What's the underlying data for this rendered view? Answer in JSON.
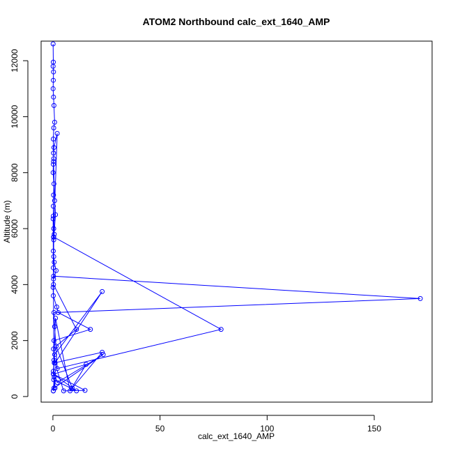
{
  "chart_data": {
    "type": "line",
    "title": "ATOM2 Northbound calc_ext_1640_AMP",
    "xlabel": "calc_ext_1640_AMP",
    "ylabel": "Altitude (m)",
    "xlim": [
      -5.5,
      177
    ],
    "ylim": [
      -200,
      12700
    ],
    "x_ticks": [
      0,
      50,
      100,
      150
    ],
    "y_ticks": [
      0,
      2000,
      4000,
      6000,
      8000,
      10000,
      12000
    ],
    "grid": false,
    "legend": "none",
    "color": "#0000ff",
    "marker": "open-circle",
    "series": [
      {
        "x": [
          0.1,
          0.2,
          0.1,
          0.3,
          0.2,
          0.1,
          0.3,
          0.5,
          0.8,
          0.4,
          0.2,
          0.3,
          0.4,
          0.2,
          0.1,
          0.5,
          0.3,
          0.2,
          0.2,
          0.4,
          0.6,
          0.3,
          2.0,
          0.5,
          0.3,
          0.8,
          1.2,
          0.4,
          0.2,
          0.6,
          1.5,
          0.3,
          0.1,
          0.2,
          1.8,
          2.5,
          17.5,
          0.5,
          0.3,
          1.0,
          23.0,
          0.8,
          0.2,
          2.0,
          23.5,
          0.5,
          0.1,
          0.4,
          0.2,
          0.3,
          171.5,
          0.5,
          0.8,
          2.0,
          78.5,
          0.4,
          0.3,
          11.0,
          1.5,
          9.0,
          23.0,
          0.6,
          0.2,
          15.5,
          8.0,
          1.2,
          0.5,
          5.0,
          15.0,
          0.3,
          11.0,
          0.4,
          1.0,
          0.6,
          0.2,
          0.2
        ],
        "y": [
          12600,
          11950,
          11800,
          11600,
          11300,
          11000,
          10700,
          10400,
          9800,
          9600,
          9200,
          8700,
          8500,
          8300,
          8000,
          7600,
          7200,
          6800,
          6450,
          6000,
          5800,
          5700,
          9400,
          8900,
          8400,
          7000,
          6500,
          5600,
          5200,
          4800,
          4500,
          4200,
          3900,
          3600,
          3200,
          3000,
          2400,
          2000,
          1700,
          1200,
          3750,
          1500,
          900,
          500,
          1500,
          300,
          6350,
          5000,
          4600,
          4300,
          3500,
          3000,
          2500,
          1000,
          2400,
          5700,
          4000,
          2400,
          1800,
          300,
          1580,
          1200,
          800,
          1150,
          200,
          2800,
          1300,
          200,
          220,
          800,
          200,
          600,
          300,
          700,
          200,
          200
        ]
      }
    ]
  }
}
